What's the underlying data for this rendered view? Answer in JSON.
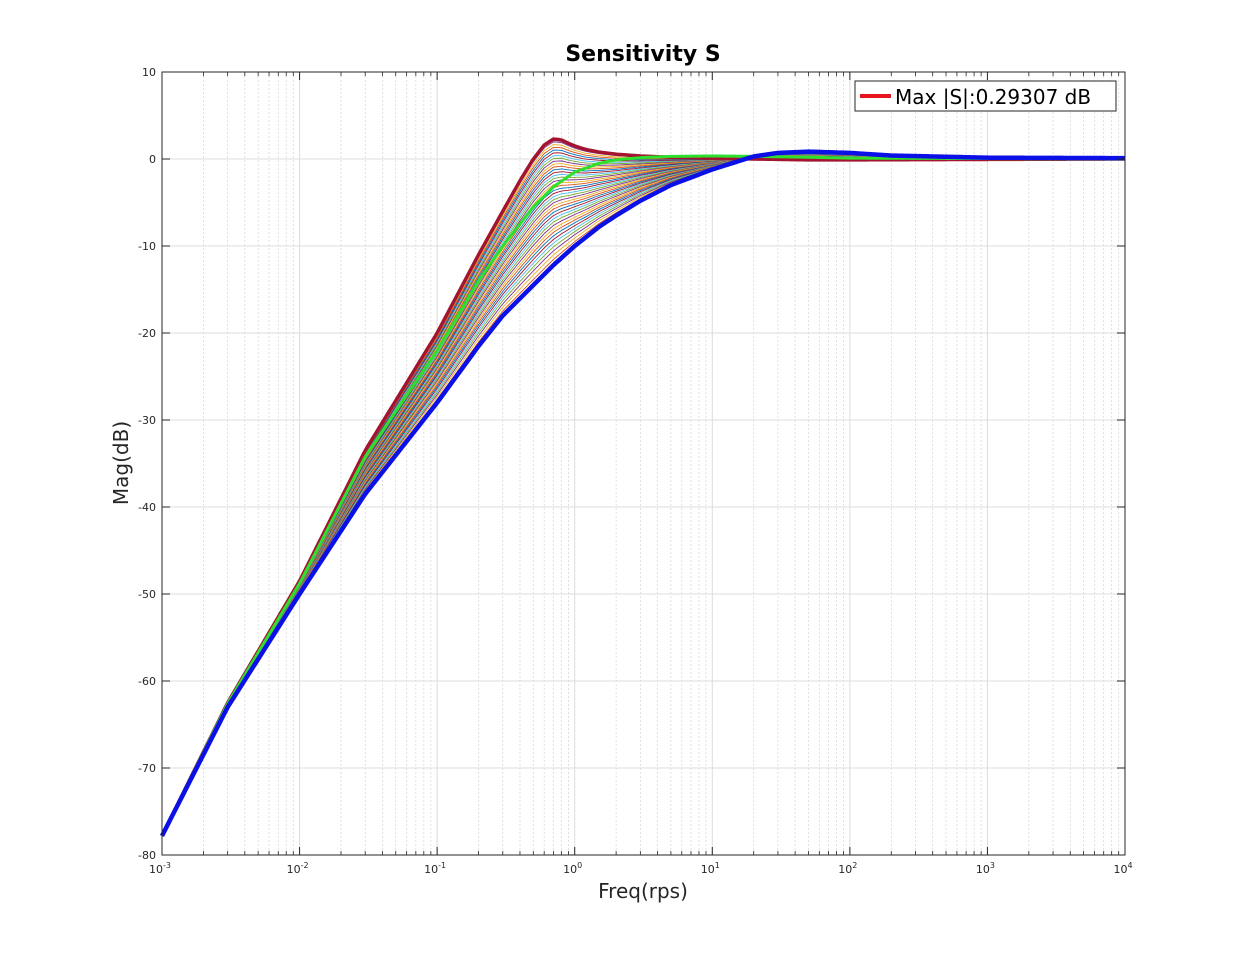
{
  "chart_data": {
    "type": "line",
    "title": "Sensitivity S",
    "xlabel": "Freq(rps)",
    "ylabel": "Mag(dB)",
    "xscale": "log",
    "xlim": [
      0.001,
      10000
    ],
    "ylim": [
      -80,
      10
    ],
    "grid": true,
    "minor_grid_x": true,
    "legend_position": "top-right",
    "legend": [
      {
        "label": "Max |S|:0.29307 dB",
        "color": "#e8161c"
      }
    ],
    "x_ticks": [
      {
        "base": "10",
        "exp": "-3",
        "value": 0.001
      },
      {
        "base": "10",
        "exp": "-2",
        "value": 0.01
      },
      {
        "base": "10",
        "exp": "-1",
        "value": 0.1
      },
      {
        "base": "10",
        "exp": "0",
        "value": 1
      },
      {
        "base": "10",
        "exp": "1",
        "value": 10
      },
      {
        "base": "10",
        "exp": "2",
        "value": 100
      },
      {
        "base": "10",
        "exp": "3",
        "value": 1000
      },
      {
        "base": "10",
        "exp": "4",
        "value": 10000
      }
    ],
    "y_ticks": [
      "10",
      "0",
      "-10",
      "-20",
      "-30",
      "-40",
      "-50",
      "-60",
      "-70",
      "-80"
    ],
    "y_tick_values": [
      10,
      0,
      -10,
      -20,
      -30,
      -40,
      -50,
      -60,
      -70,
      -80
    ],
    "family_colors": [
      "#0072bd",
      "#d95319",
      "#edb120",
      "#7e2f8e",
      "#77ac30",
      "#4dbeee",
      "#a2142f"
    ],
    "family_count": 40,
    "series": [
      {
        "role": "upper-bound",
        "color": "#a2142f",
        "x": [
          0.001,
          0.003,
          0.01,
          0.03,
          0.1,
          0.2,
          0.3,
          0.4,
          0.5,
          0.6,
          0.7,
          0.8,
          0.9,
          1.0,
          1.2,
          1.5,
          2,
          3,
          5,
          10,
          20,
          50,
          100,
          1000,
          10000
        ],
        "y": [
          -77.8,
          -62.5,
          -48.5,
          -33.5,
          -20.0,
          -11.0,
          -6.0,
          -2.5,
          0.0,
          1.6,
          2.3,
          2.2,
          1.8,
          1.5,
          1.1,
          0.8,
          0.55,
          0.35,
          0.2,
          0.1,
          0.0,
          -0.1,
          -0.1,
          -0.05,
          0.0
        ]
      },
      {
        "role": "highlight",
        "color": "#2ee02e",
        "x": [
          0.001,
          0.003,
          0.01,
          0.03,
          0.1,
          0.2,
          0.3,
          0.5,
          0.7,
          1.0,
          1.5,
          2,
          3,
          5,
          10,
          20,
          50,
          100,
          1000,
          10000
        ],
        "y": [
          -77.8,
          -62.6,
          -48.8,
          -34.2,
          -22.0,
          -14.0,
          -10.0,
          -5.5,
          -3.2,
          -1.5,
          -0.5,
          -0.1,
          0.15,
          0.3,
          0.35,
          0.3,
          0.2,
          0.1,
          0.05,
          0.0
        ]
      },
      {
        "role": "lower-bound",
        "color": "#0a10e6",
        "x": [
          0.001,
          0.003,
          0.01,
          0.03,
          0.1,
          0.2,
          0.3,
          0.5,
          0.7,
          1.0,
          1.5,
          2,
          3,
          5,
          10,
          20,
          30,
          50,
          100,
          200,
          1000,
          10000
        ],
        "y": [
          -77.8,
          -63.0,
          -50.0,
          -38.5,
          -28.0,
          -21.5,
          -18.0,
          -14.5,
          -12.2,
          -10.0,
          -7.8,
          -6.5,
          -4.8,
          -3.0,
          -1.2,
          0.3,
          0.7,
          0.85,
          0.7,
          0.4,
          0.15,
          0.1
        ]
      }
    ]
  }
}
